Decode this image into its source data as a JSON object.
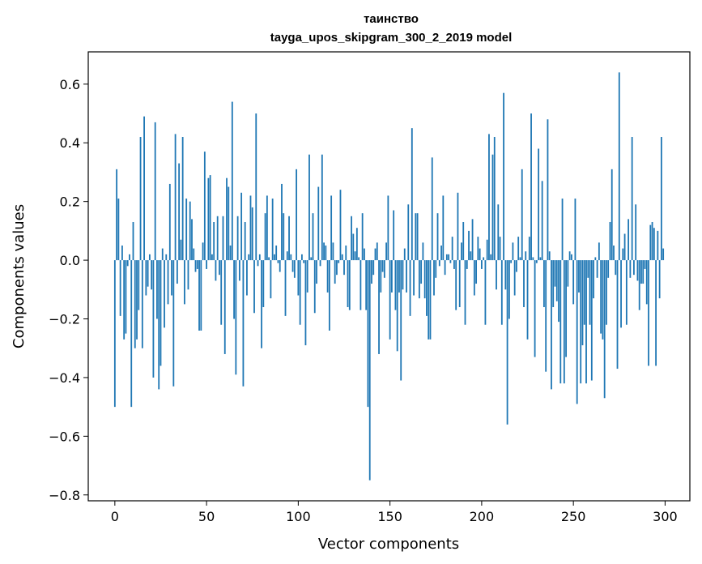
{
  "chart_data": {
    "type": "bar",
    "title": "таинство",
    "subtitle": "tayga_upos_skipgram_300_2_2019 model",
    "xlabel": "Vector components",
    "ylabel": "Components values",
    "xlim": [
      -14.5,
      313.5
    ],
    "ylim": [
      -0.82,
      0.71
    ],
    "xticks": [
      0,
      50,
      100,
      150,
      200,
      250,
      300
    ],
    "yticks": [
      -0.8,
      -0.6,
      -0.4,
      -0.2,
      0.0,
      0.2,
      0.4,
      0.6
    ],
    "ytick_labels": [
      "−0.8",
      "−0.6",
      "−0.4",
      "−0.2",
      "0.0",
      "0.2",
      "0.4",
      "0.6"
    ],
    "bar_color": "#1f77b4",
    "x": [
      0,
      1,
      2,
      3,
      4,
      5,
      6,
      7,
      8,
      9,
      10,
      11,
      12,
      13,
      14,
      15,
      16,
      17,
      18,
      19,
      20,
      21,
      22,
      23,
      24,
      25,
      26,
      27,
      28,
      29,
      30,
      31,
      32,
      33,
      34,
      35,
      36,
      37,
      38,
      39,
      40,
      41,
      42,
      43,
      44,
      45,
      46,
      47,
      48,
      49,
      50,
      51,
      52,
      53,
      54,
      55,
      56,
      57,
      58,
      59,
      60,
      61,
      62,
      63,
      64,
      65,
      66,
      67,
      68,
      69,
      70,
      71,
      72,
      73,
      74,
      75,
      76,
      77,
      78,
      79,
      80,
      81,
      82,
      83,
      84,
      85,
      86,
      87,
      88,
      89,
      90,
      91,
      92,
      93,
      94,
      95,
      96,
      97,
      98,
      99,
      100,
      101,
      102,
      103,
      104,
      105,
      106,
      107,
      108,
      109,
      110,
      111,
      112,
      113,
      114,
      115,
      116,
      117,
      118,
      119,
      120,
      121,
      122,
      123,
      124,
      125,
      126,
      127,
      128,
      129,
      130,
      131,
      132,
      133,
      134,
      135,
      136,
      137,
      138,
      139,
      140,
      141,
      142,
      143,
      144,
      145,
      146,
      147,
      148,
      149,
      150,
      151,
      152,
      153,
      154,
      155,
      156,
      157,
      158,
      159,
      160,
      161,
      162,
      163,
      164,
      165,
      166,
      167,
      168,
      169,
      170,
      171,
      172,
      173,
      174,
      175,
      176,
      177,
      178,
      179,
      180,
      181,
      182,
      183,
      184,
      185,
      186,
      187,
      188,
      189,
      190,
      191,
      192,
      193,
      194,
      195,
      196,
      197,
      198,
      199,
      200,
      201,
      202,
      203,
      204,
      205,
      206,
      207,
      208,
      209,
      210,
      211,
      212,
      213,
      214,
      215,
      216,
      217,
      218,
      219,
      220,
      221,
      222,
      223,
      224,
      225,
      226,
      227,
      228,
      229,
      230,
      231,
      232,
      233,
      234,
      235,
      236,
      237,
      238,
      239,
      240,
      241,
      242,
      243,
      244,
      245,
      246,
      247,
      248,
      249,
      250,
      251,
      252,
      253,
      254,
      255,
      256,
      257,
      258,
      259,
      260,
      261,
      262,
      263,
      264,
      265,
      266,
      267,
      268,
      269,
      270,
      271,
      272,
      273,
      274,
      275,
      276,
      277,
      278,
      279,
      280,
      281,
      282,
      283,
      284,
      285,
      286,
      287,
      288,
      289,
      290,
      291,
      292,
      293,
      294,
      295,
      296,
      297,
      298,
      299
    ],
    "values": [
      -0.5,
      0.31,
      0.21,
      -0.19,
      0.05,
      -0.27,
      -0.25,
      -0.02,
      0.02,
      -0.5,
      0.13,
      -0.3,
      -0.27,
      -0.17,
      0.42,
      -0.3,
      0.49,
      -0.12,
      -0.09,
      0.02,
      -0.1,
      -0.4,
      0.47,
      -0.2,
      -0.44,
      -0.36,
      0.04,
      -0.23,
      0.02,
      -0.15,
      0.26,
      -0.12,
      -0.43,
      0.43,
      -0.08,
      0.33,
      0.07,
      0.42,
      -0.15,
      0.21,
      -0.1,
      0.2,
      0.14,
      0.04,
      -0.04,
      -0.03,
      -0.24,
      -0.24,
      0.06,
      0.37,
      -0.03,
      0.28,
      0.29,
      0.02,
      0.13,
      -0.07,
      0.15,
      -0.05,
      -0.22,
      0.15,
      -0.32,
      0.28,
      0.25,
      0.05,
      0.54,
      -0.2,
      -0.39,
      0.15,
      -0.07,
      0.23,
      -0.43,
      0.13,
      -0.12,
      0.02,
      0.22,
      0.18,
      -0.18,
      0.5,
      -0.02,
      0.02,
      -0.3,
      -0.16,
      0.16,
      0.22,
      0.01,
      -0.13,
      0.21,
      0.02,
      0.05,
      -0.01,
      -0.04,
      0.26,
      0.16,
      -0.19,
      0.03,
      0.15,
      0.02,
      -0.04,
      -0.06,
      0.31,
      -0.12,
      -0.22,
      0.02,
      -0.01,
      -0.29,
      -0.11,
      0.36,
      0.01,
      0.16,
      -0.18,
      -0.08,
      0.25,
      -0.02,
      0.36,
      0.06,
      0.05,
      -0.11,
      -0.24,
      0.22,
      0.06,
      -0.08,
      -0.05,
      -0.01,
      0.24,
      0.02,
      -0.05,
      0.05,
      -0.16,
      -0.17,
      0.15,
      0.09,
      0.03,
      0.11,
      0.01,
      -0.17,
      0.16,
      0.04,
      -0.17,
      -0.5,
      -0.75,
      -0.08,
      -0.05,
      0.04,
      0.06,
      -0.32,
      -0.11,
      -0.04,
      -0.06,
      0.06,
      0.22,
      -0.27,
      -0.11,
      0.17,
      -0.17,
      -0.31,
      -0.11,
      -0.41,
      -0.1,
      0.04,
      -0.11,
      0.19,
      -0.19,
      0.45,
      -0.12,
      0.16,
      0.16,
      -0.13,
      -0.08,
      0.06,
      -0.13,
      -0.19,
      -0.27,
      -0.27,
      0.35,
      -0.12,
      -0.06,
      0.16,
      -0.02,
      0.05,
      0.22,
      -0.05,
      0.02,
      0.02,
      -0.01,
      0.08,
      -0.03,
      -0.17,
      0.23,
      -0.16,
      0.06,
      0.13,
      -0.22,
      -0.03,
      0.1,
      0.03,
      0.14,
      -0.12,
      -0.08,
      0.08,
      0.04,
      -0.03,
      0.01,
      -0.22,
      0.07,
      0.43,
      0.02,
      0.36,
      0.42,
      -0.1,
      0.19,
      0.08,
      -0.22,
      0.57,
      -0.1,
      -0.56,
      -0.2,
      -0.01,
      0.06,
      -0.12,
      -0.04,
      0.08,
      0.01,
      0.31,
      -0.16,
      0.03,
      -0.27,
      0.08,
      0.5,
      0.01,
      -0.33,
      -0.01,
      0.38,
      0.01,
      0.27,
      -0.16,
      -0.38,
      0.48,
      0.03,
      -0.44,
      -0.16,
      -0.09,
      -0.14,
      -0.21,
      -0.42,
      0.21,
      -0.42,
      -0.33,
      -0.09,
      0.03,
      0.02,
      -0.15,
      0.21,
      -0.49,
      -0.11,
      -0.42,
      -0.29,
      -0.22,
      -0.42,
      -0.06,
      -0.22,
      -0.41,
      -0.13,
      0.01,
      -0.06,
      0.06,
      -0.25,
      -0.27,
      -0.47,
      -0.22,
      -0.06,
      0.13,
      0.31,
      0.05,
      -0.05,
      -0.37,
      0.64,
      -0.23,
      0.04,
      0.09,
      -0.22,
      0.14,
      -0.06,
      0.42,
      -0.05,
      0.19,
      -0.07,
      -0.17,
      -0.08,
      -0.08,
      -0.03,
      -0.15,
      -0.36,
      0.12,
      0.13,
      0.11,
      -0.36,
      0.1,
      -0.13,
      0.42,
      0.04
    ]
  }
}
